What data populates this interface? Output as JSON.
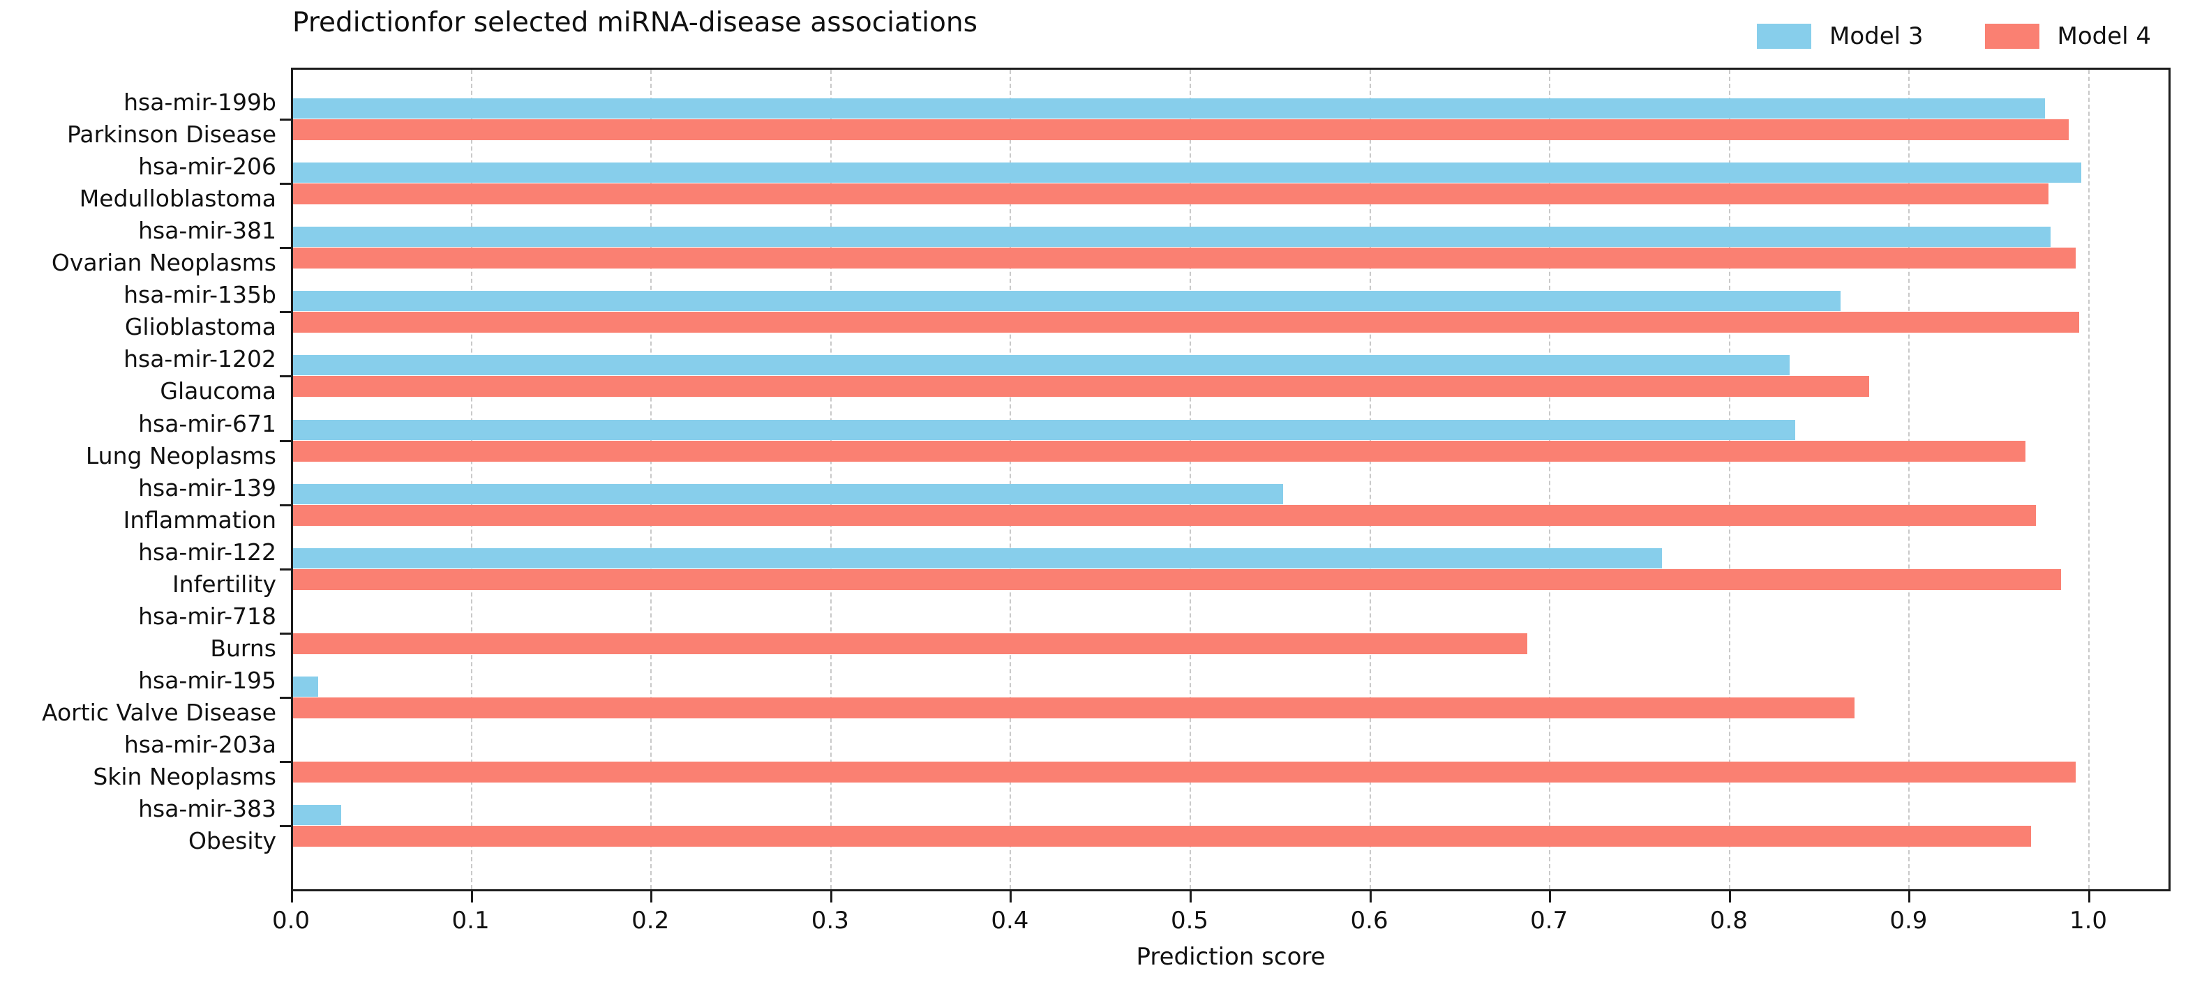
{
  "chart": {
    "title": "Predictionfor selected miRNA-disease associations",
    "xlabel": "Prediction score",
    "legend_position": "top-right-outside",
    "accent_colors": {
      "model3": "#87CEEB",
      "model4": "#FA8072"
    }
  },
  "chart_data": {
    "type": "bar",
    "orientation": "horizontal",
    "title": "Predictionfor selected miRNA-disease associations",
    "xlabel": "Prediction score",
    "ylabel": "",
    "xlim": [
      0.0,
      1.046
    ],
    "grid": {
      "axis": "x",
      "style": "dashed",
      "step": 0.1,
      "color": "#c9c9c9"
    },
    "x_tick_labels": [
      "0.0",
      "0.1",
      "0.2",
      "0.3",
      "0.4",
      "0.5",
      "0.6",
      "0.7",
      "0.8",
      "0.9",
      "1.0"
    ],
    "x_tick_values": [
      0.0,
      0.1,
      0.2,
      0.3,
      0.4,
      0.5,
      0.6,
      0.7,
      0.8,
      0.9,
      1.0
    ],
    "categories": [
      {
        "mirna": "hsa-mir-199b",
        "disease": "Parkinson Disease"
      },
      {
        "mirna": "hsa-mir-206",
        "disease": "Medulloblastoma"
      },
      {
        "mirna": "hsa-mir-381",
        "disease": "Ovarian Neoplasms"
      },
      {
        "mirna": "hsa-mir-135b",
        "disease": "Glioblastoma"
      },
      {
        "mirna": "hsa-mir-1202",
        "disease": "Glaucoma"
      },
      {
        "mirna": "hsa-mir-671",
        "disease": "Lung Neoplasms"
      },
      {
        "mirna": "hsa-mir-139",
        "disease": "Inflammation"
      },
      {
        "mirna": "hsa-mir-122",
        "disease": "Infertility"
      },
      {
        "mirna": "hsa-mir-718",
        "disease": "Burns"
      },
      {
        "mirna": "hsa-mir-195",
        "disease": "Aortic Valve Disease"
      },
      {
        "mirna": "hsa-mir-203a",
        "disease": "Skin Neoplasms"
      },
      {
        "mirna": "hsa-mir-383",
        "disease": "Obesity"
      }
    ],
    "series": [
      {
        "name": "Model 3",
        "color": "#87CEEB",
        "values": [
          0.976,
          0.996,
          0.979,
          0.862,
          0.834,
          0.837,
          0.552,
          0.763,
          0.0,
          0.015,
          0.0,
          0.028
        ]
      },
      {
        "name": "Model 4",
        "color": "#FA8072",
        "values": [
          0.989,
          0.978,
          0.993,
          0.995,
          0.878,
          0.965,
          0.971,
          0.985,
          0.688,
          0.87,
          0.993,
          0.968
        ]
      }
    ]
  }
}
